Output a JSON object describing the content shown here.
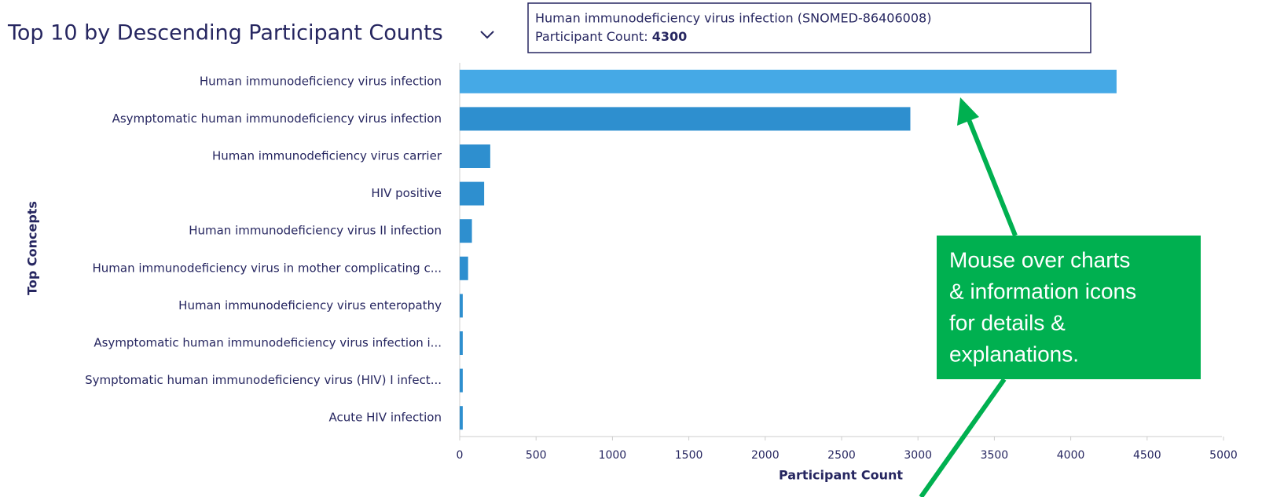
{
  "chart_data": {
    "type": "bar",
    "orientation": "horizontal",
    "title": "Top 10 by Descending Participant Counts",
    "categories": [
      "Human immunodeficiency virus infection",
      "Asymptomatic human immunodeficiency virus infection",
      "Human immunodeficiency virus carrier",
      "HIV positive",
      "Human immunodeficiency virus II infection",
      "Human immunodeficiency virus in mother complicating c...",
      "Human immunodeficiency virus enteropathy",
      "Asymptomatic human immunodeficiency virus infection i...",
      "Symptomatic human immunodeficiency virus (HIV) I infect...",
      "Acute HIV infection"
    ],
    "values": [
      4300,
      2950,
      200,
      160,
      80,
      55,
      20,
      20,
      20,
      20
    ],
    "colors": [
      "#45a9e6",
      "#2e8fcf",
      "#2e8fcf",
      "#2e8fcf",
      "#2e8fcf",
      "#2e8fcf",
      "#2e8fcf",
      "#2e8fcf",
      "#2e8fcf",
      "#2e8fcf"
    ],
    "xlim": [
      0,
      5000
    ],
    "xticks": [
      0,
      500,
      1000,
      1500,
      2000,
      2500,
      3000,
      3500,
      4000,
      4500,
      5000
    ],
    "xlabel": "Participant Count",
    "ylabel": "Top Concepts",
    "tooltip": {
      "title": "Human immunodeficiency virus infection (SNOMED-86406008)",
      "label": "Participant Count:"
    },
    "annotation": [
      "Mouse over charts",
      "& information icons",
      "for details &",
      "explanations."
    ]
  }
}
